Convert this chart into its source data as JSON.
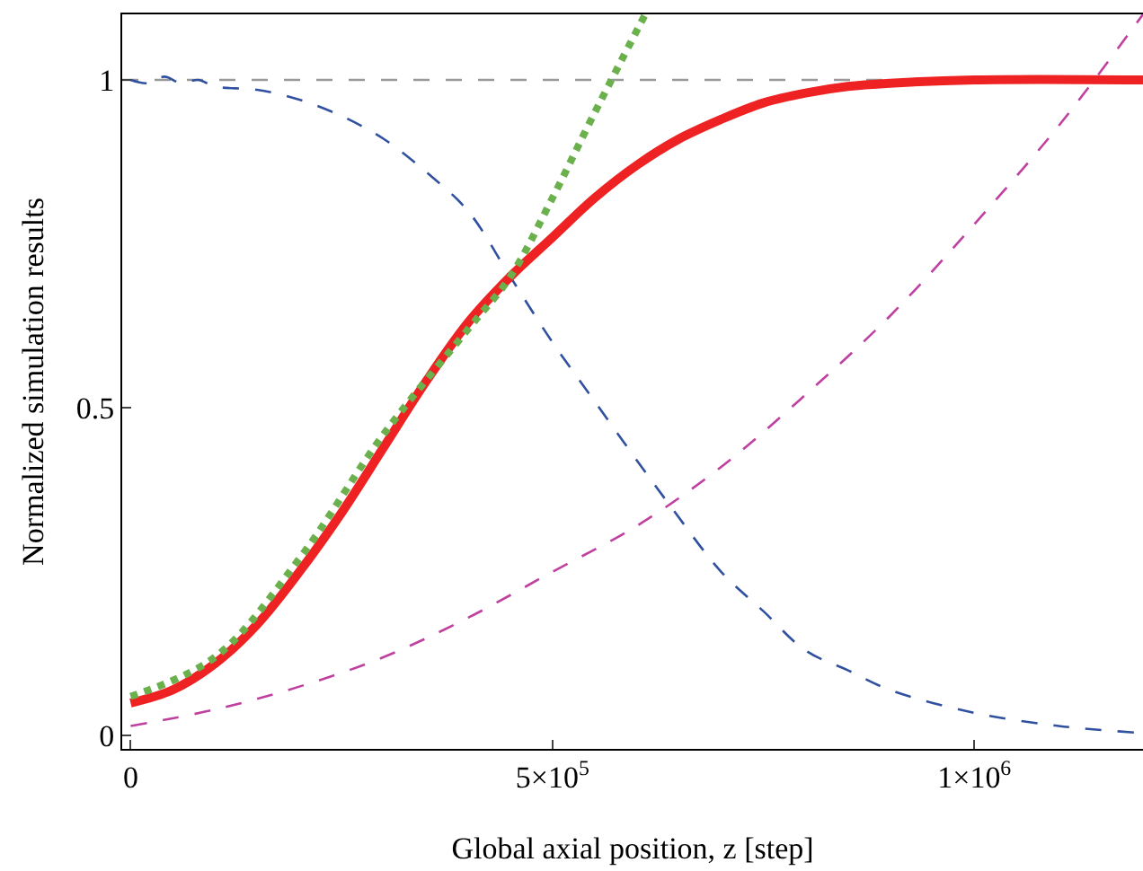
{
  "chart_data": {
    "type": "line",
    "xlabel": "Global axial position, z [step]",
    "ylabel": "Normalized simulation results",
    "xlim": [
      -10000,
      1200000
    ],
    "ylim": [
      -0.02,
      1.1
    ],
    "xticks": [
      0,
      {
        "value": 500000,
        "label": "5×10$^{5}$"
      },
      {
        "value": 1000000,
        "label": "1×10$^{6}$"
      }
    ],
    "yticks": [
      0,
      0.5,
      1
    ],
    "grid": false,
    "marker": "none",
    "ref_lines": [
      {
        "axis": "y",
        "value": 1,
        "color": "#999999",
        "line_style": "dashed"
      }
    ],
    "series": [
      {
        "color": "#3050a0",
        "line_style": "dashed",
        "x": [
          0,
          20000,
          40000,
          60000,
          80000,
          100000,
          150000,
          200000,
          250000,
          300000,
          350000,
          400000,
          450000,
          500000,
          550000,
          600000,
          640000,
          700000,
          750000,
          800000,
          850000,
          900000,
          1000000,
          1100000,
          1190000
        ],
        "values": [
          1,
          0.995,
          1.005,
          0.995,
          1,
          0.99,
          0.985,
          0.97,
          0.945,
          0.91,
          0.86,
          0.8,
          0.7,
          0.6,
          0.51,
          0.42,
          0.35,
          0.25,
          0.19,
          0.13,
          0.1,
          0.07,
          0.035,
          0.015,
          0.005
        ]
      },
      {
        "color": "#c040a0",
        "line_style": "dashed",
        "x": [
          0,
          100000,
          200000,
          300000,
          400000,
          500000,
          600000,
          700000,
          800000,
          900000,
          1000000,
          1100000,
          1200000
        ],
        "values": [
          0.015,
          0.04,
          0.075,
          0.12,
          0.18,
          0.25,
          0.32,
          0.41,
          0.52,
          0.64,
          0.78,
          0.93,
          1.1
        ]
      },
      {
        "color": "#ee2222",
        "line_style": "solid",
        "x": [
          0,
          50000,
          100000,
          150000,
          200000,
          250000,
          300000,
          350000,
          400000,
          450000,
          500000,
          550000,
          600000,
          650000,
          700000,
          750000,
          800000,
          850000,
          900000,
          1000000,
          1200000
        ],
        "values": [
          0.05,
          0.07,
          0.11,
          0.17,
          0.25,
          0.34,
          0.44,
          0.54,
          0.63,
          0.7,
          0.76,
          0.82,
          0.87,
          0.91,
          0.94,
          0.965,
          0.98,
          0.99,
          0.995,
          1,
          1
        ]
      },
      {
        "color": "#6ab04c",
        "line_style": "dotted",
        "x": [
          0,
          100000,
          200000,
          300000,
          400000,
          450000,
          500000,
          550000,
          610000
        ],
        "values": [
          0.06,
          0.12,
          0.27,
          0.46,
          0.62,
          0.7,
          0.82,
          0.95,
          1.1
        ]
      }
    ]
  }
}
